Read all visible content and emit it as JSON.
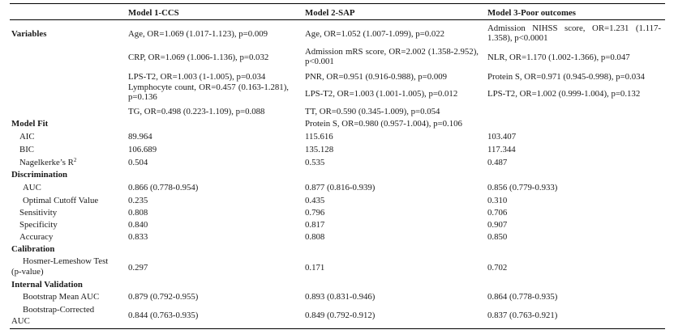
{
  "header": {
    "col1": "Model 1-CCS",
    "col2": "Model 2-SAP",
    "col3": "Model 3-Poor outcomes"
  },
  "sections": {
    "variables": "Variables",
    "model_fit": "Model Fit",
    "discrimination": "Discrimination",
    "calibration": "Calibration",
    "internal_validation": "Internal Validation"
  },
  "variables": {
    "m1": [
      "Age, OR=1.069 (1.017-1.123), p=0.009",
      "CRP, OR=1.069 (1.006-1.136), p=0.032",
      "LPS-T2, OR=1.003 (1-1.005), p=0.034",
      "Lymphocyte count, OR=0.457 (0.163-1.281), p=0.136",
      "TG, OR=0.498 (0.223-1.109), p=0.088"
    ],
    "m2": [
      "Age, OR=1.052 (1.007-1.099), p=0.022",
      "Admission mRS score, OR=2.002 (1.358-2.952), p<0.001",
      "PNR, OR=0.951 (0.916-0.988), p=0.009",
      "LPS-T2, OR=1.003 (1.001-1.005), p=0.012",
      "TT, OR=0.590 (0.345-1.009), p=0.054",
      "Protein S, OR=0.980 (0.957-1.004), p=0.106"
    ],
    "m3": [
      "Admission NIHSS score, OR=1.231 (1.117-1.358), p<0.0001",
      "NLR, OR=1.170 (1.002-1.366), p=0.047",
      "Protein S, OR=0.971 (0.945-0.998), p=0.034",
      "LPS-T2, OR=1.002 (0.999-1.004), p=0.132"
    ]
  },
  "rows": {
    "aic": {
      "label": "AIC",
      "m1": "89.964",
      "m2": "115.616",
      "m3": "103.407"
    },
    "bic": {
      "label": "BIC",
      "m1": "106.689",
      "m2": "135.128",
      "m3": "117.344"
    },
    "r2": {
      "label": "Nagelkerke’s R",
      "sup": "2",
      "m1": "0.504",
      "m2": "0.535",
      "m3": "0.487"
    },
    "auc": {
      "label": "AUC",
      "m1": "0.866 (0.778-0.954)",
      "m2": "0.877 (0.816-0.939)",
      "m3": "0.856 (0.779-0.933)"
    },
    "cutoff": {
      "label": "Optimal Cutoff Value",
      "m1": "0.235",
      "m2": "0.435",
      "m3": "0.310"
    },
    "sens": {
      "label": "Sensitivity",
      "m1": "0.808",
      "m2": "0.796",
      "m3": "0.706"
    },
    "spec": {
      "label": "Specificity",
      "m1": "0.840",
      "m2": "0.817",
      "m3": "0.907"
    },
    "acc": {
      "label": "Accuracy",
      "m1": "0.833",
      "m2": "0.808",
      "m3": "0.850"
    },
    "hl": {
      "label1": "Hosmer-Lemeshow Test",
      "label2": "(p-value)",
      "m1": "0.297",
      "m2": "0.171",
      "m3": "0.702"
    },
    "bma": {
      "label": "Bootstrap Mean AUC",
      "m1": "0.879 (0.792-0.955)",
      "m2": "0.893 (0.831-0.946)",
      "m3": "0.864 (0.778-0.935)"
    },
    "bca": {
      "label1": "Bootstrap-Corrected",
      "label2": "AUC",
      "m1": "0.844 (0.763-0.935)",
      "m2": "0.849 (0.792-0.912)",
      "m3": "0.837 (0.763-0.921)"
    }
  }
}
